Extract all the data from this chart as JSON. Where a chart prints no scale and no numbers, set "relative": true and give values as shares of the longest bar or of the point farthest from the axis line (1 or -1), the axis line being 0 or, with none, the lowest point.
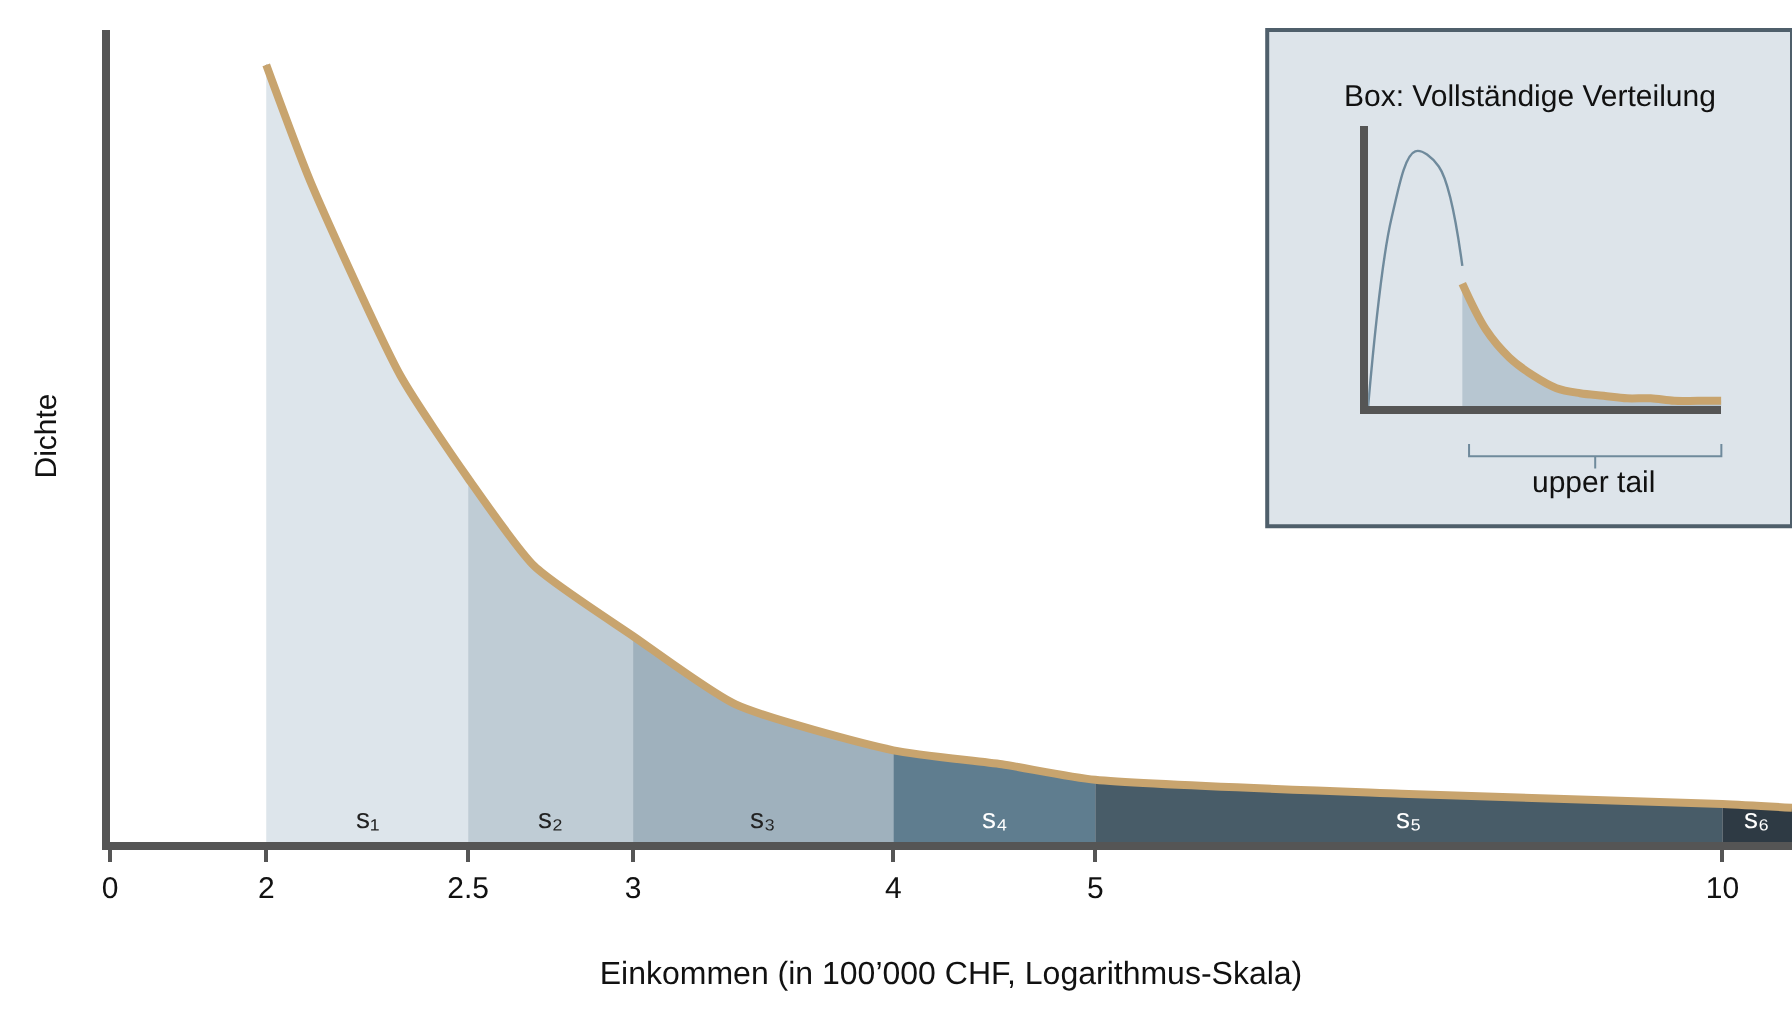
{
  "chart_data": [
    {
      "type": "area",
      "relative": true,
      "log": "x",
      "xlim": [
        0,
        10.8
      ],
      "xticks": [
        0,
        2,
        2.5,
        3,
        4,
        5,
        10
      ],
      "xlabel": "Einkommen (in 100’000 CHF, Logarithmus-Skala)",
      "ylabel": "Dichte",
      "tick_labels": "x",
      "legend": false,
      "grid": false,
      "series": [
        {
          "name": "s₁",
          "color": "#dde5eb",
          "x": [
            2,
            2.1,
            2.32,
            2.5
          ],
          "values": [
            1.0,
            0.85,
            0.6,
            0.468
          ]
        },
        {
          "name": "s₂",
          "color": "#bfccd5",
          "x": [
            2.5,
            2.69,
            3
          ],
          "values": [
            0.468,
            0.355,
            0.265
          ]
        },
        {
          "name": "s₃",
          "color": "#9fb1bd",
          "x": [
            3,
            3.36,
            4
          ],
          "values": [
            0.265,
            0.177,
            0.118
          ]
        },
        {
          "name": "s₄",
          "color": "#5f7d8f",
          "x": [
            4,
            4.51,
            5
          ],
          "values": [
            0.118,
            0.1,
            0.08
          ]
        },
        {
          "name": "s₅",
          "color": "#485c68",
          "x": [
            5,
            7.01,
            10
          ],
          "values": [
            0.08,
            0.062,
            0.049
          ]
        },
        {
          "name": "s₆",
          "color": "#2e3a44",
          "x": [
            10,
            10.8
          ],
          "values": [
            0.049,
            0.044
          ]
        },
        {
          "type": "line",
          "color": "#c8a46e",
          "x": [
            2,
            2.1,
            2.32,
            2.5,
            2.69,
            3,
            3.36,
            4,
            4.51,
            5,
            7.01,
            10,
            10.8
          ],
          "values": [
            1.0,
            0.85,
            0.6,
            0.468,
            0.355,
            0.265,
            0.177,
            0.118,
            0.1,
            0.08,
            0.062,
            0.049,
            0.044
          ]
        }
      ]
    },
    {
      "type": "line",
      "relative": true,
      "title": "Box: Vollständige Verteilung",
      "tick_labels": false,
      "legend": false,
      "grid": false,
      "categories": [
        null,
        null,
        null,
        null,
        null,
        null,
        null,
        null,
        null,
        null,
        null,
        null,
        null,
        null,
        null,
        null
      ],
      "annotations": [
        "upper tail"
      ],
      "series": [
        {
          "color": "#6f8a9c",
          "values": [
            0,
            0.74,
            1.0,
            0.94,
            0.55,
            null,
            null,
            null,
            null,
            null,
            null,
            null,
            null,
            null,
            null,
            null
          ]
        },
        {
          "type": "area",
          "color": "#c8a46e",
          "values": [
            null,
            null,
            null,
            null,
            0.48,
            0.3,
            0.19,
            0.12,
            0.07,
            0.05,
            0.04,
            0.03,
            0.03,
            0.02,
            0.02,
            0.02
          ]
        }
      ]
    }
  ]
}
